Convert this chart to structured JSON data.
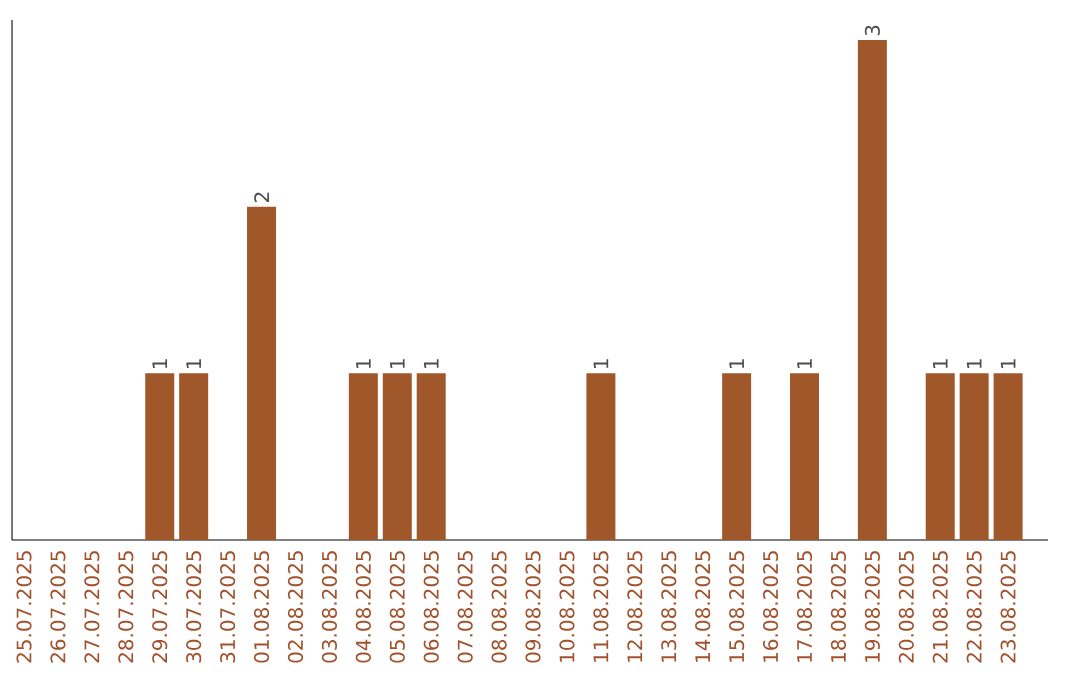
{
  "chart_data": {
    "type": "bar",
    "categories": [
      "25.07.2025",
      "26.07.2025",
      "27.07.2025",
      "28.07.2025",
      "29.07.2025",
      "30.07.2025",
      "31.07.2025",
      "01.08.2025",
      "02.08.2025",
      "03.08.2025",
      "04.08.2025",
      "05.08.2025",
      "06.08.2025",
      "07.08.2025",
      "08.08.2025",
      "09.08.2025",
      "10.08.2025",
      "11.08.2025",
      "12.08.2025",
      "13.08.2025",
      "14.08.2025",
      "15.08.2025",
      "16.08.2025",
      "17.08.2025",
      "18.08.2025",
      "19.08.2025",
      "20.08.2025",
      "21.08.2025",
      "22.08.2025",
      "23.08.2025"
    ],
    "values": [
      0,
      0,
      0,
      0,
      1,
      1,
      0,
      2,
      0,
      0,
      1,
      1,
      1,
      0,
      0,
      0,
      0,
      1,
      0,
      0,
      0,
      1,
      0,
      1,
      0,
      3,
      0,
      1,
      1,
      1
    ],
    "value_labels": [
      null,
      null,
      null,
      null,
      "1",
      "1",
      null,
      "2",
      null,
      null,
      "1",
      "1",
      "1",
      null,
      null,
      null,
      null,
      "1",
      null,
      null,
      null,
      "1",
      null,
      "1",
      null,
      "3",
      null,
      "1",
      "1",
      "1"
    ],
    "color": "#a0582a"
  }
}
